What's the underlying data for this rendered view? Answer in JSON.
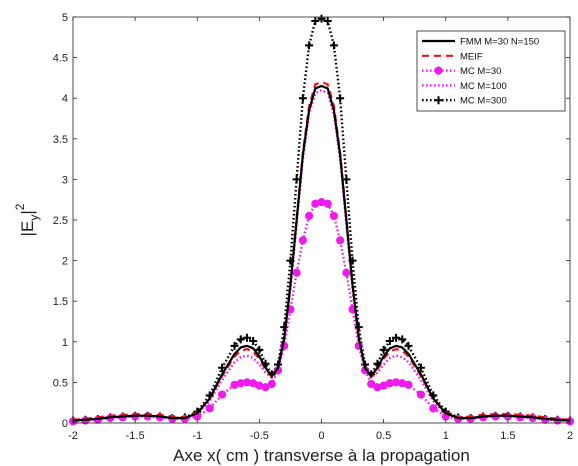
{
  "chart_data": {
    "type": "line",
    "title": "",
    "xlabel": "Axe x( cm ) transverse à la propagation",
    "ylabel_base": "|E",
    "ylabel_sub": "y",
    "ylabel_sup": "2",
    "xlim": [
      -2,
      2
    ],
    "ylim": [
      0,
      5
    ],
    "xticks": [
      -2,
      -1.5,
      -1,
      -0.5,
      0,
      0.5,
      1,
      1.5,
      2
    ],
    "xtick_labels": [
      "-2",
      "-1.5",
      "-1",
      "-0.5",
      "0",
      "0.5",
      "1",
      "1.5",
      "2"
    ],
    "yticks": [
      0,
      0.5,
      1,
      1.5,
      2,
      2.5,
      3,
      3.5,
      4,
      4.5,
      5
    ],
    "ytick_labels": [
      "0",
      "0.5",
      "1",
      "1.5",
      "2",
      "2.5",
      "3",
      "3.5",
      "4",
      "4.5",
      "5"
    ],
    "grid": false,
    "legend_position": "top-right",
    "x": [
      -2,
      -1.9,
      -1.8,
      -1.7,
      -1.6,
      -1.5,
      -1.4,
      -1.3,
      -1.2,
      -1.1,
      -1.0,
      -0.9,
      -0.8,
      -0.7,
      -0.65,
      -0.6,
      -0.55,
      -0.5,
      -0.45,
      -0.4,
      -0.35,
      -0.3,
      -0.25,
      -0.2,
      -0.15,
      -0.1,
      -0.05,
      0,
      0.05,
      0.1,
      0.15,
      0.2,
      0.25,
      0.3,
      0.35,
      0.4,
      0.45,
      0.5,
      0.55,
      0.6,
      0.65,
      0.7,
      0.8,
      0.9,
      1.0,
      1.1,
      1.2,
      1.3,
      1.4,
      1.5,
      1.6,
      1.7,
      1.8,
      1.9,
      2
    ],
    "series": [
      {
        "name": "FMM M=30 N=150",
        "color": "#000000",
        "style": "solid",
        "marker": "none",
        "values": [
          0.03,
          0.04,
          0.05,
          0.07,
          0.08,
          0.09,
          0.09,
          0.08,
          0.06,
          0.06,
          0.12,
          0.3,
          0.6,
          0.85,
          0.93,
          0.95,
          0.92,
          0.82,
          0.68,
          0.58,
          0.68,
          1.05,
          1.7,
          2.5,
          3.3,
          3.85,
          4.12,
          4.15,
          4.12,
          3.85,
          3.3,
          2.5,
          1.7,
          1.05,
          0.68,
          0.58,
          0.68,
          0.82,
          0.92,
          0.95,
          0.93,
          0.85,
          0.6,
          0.3,
          0.12,
          0.06,
          0.06,
          0.08,
          0.09,
          0.09,
          0.08,
          0.07,
          0.05,
          0.04,
          0.03
        ]
      },
      {
        "name": "MEIF",
        "color": "#e8141b",
        "style": "dashed",
        "marker": "none",
        "values": [
          0.04,
          0.05,
          0.07,
          0.09,
          0.1,
          0.11,
          0.11,
          0.1,
          0.08,
          0.07,
          0.13,
          0.3,
          0.58,
          0.82,
          0.89,
          0.91,
          0.88,
          0.79,
          0.66,
          0.57,
          0.67,
          1.04,
          1.7,
          2.52,
          3.33,
          3.9,
          4.17,
          4.2,
          4.17,
          3.9,
          3.33,
          2.52,
          1.7,
          1.04,
          0.67,
          0.57,
          0.66,
          0.79,
          0.88,
          0.91,
          0.89,
          0.82,
          0.58,
          0.3,
          0.13,
          0.07,
          0.08,
          0.1,
          0.11,
          0.11,
          0.1,
          0.09,
          0.07,
          0.05,
          0.04
        ]
      },
      {
        "name": "MC M=30",
        "color": "#ee1bee",
        "style": "dotted",
        "marker": "circle",
        "values": [
          0.02,
          0.03,
          0.04,
          0.06,
          0.07,
          0.08,
          0.08,
          0.07,
          0.05,
          0.05,
          0.08,
          0.18,
          0.35,
          0.47,
          0.49,
          0.5,
          0.49,
          0.46,
          0.44,
          0.48,
          0.65,
          0.95,
          1.4,
          1.85,
          2.25,
          2.55,
          2.7,
          2.72,
          2.7,
          2.55,
          2.25,
          1.85,
          1.4,
          0.95,
          0.65,
          0.48,
          0.44,
          0.46,
          0.49,
          0.5,
          0.49,
          0.47,
          0.35,
          0.18,
          0.08,
          0.05,
          0.05,
          0.07,
          0.08,
          0.08,
          0.07,
          0.06,
          0.04,
          0.03,
          0.02
        ]
      },
      {
        "name": "MC M=100",
        "color": "#ee1bee",
        "style": "dotted",
        "marker": "none",
        "values": [
          0.03,
          0.04,
          0.05,
          0.07,
          0.08,
          0.09,
          0.09,
          0.08,
          0.06,
          0.06,
          0.11,
          0.27,
          0.53,
          0.75,
          0.81,
          0.83,
          0.8,
          0.72,
          0.62,
          0.56,
          0.67,
          1.02,
          1.65,
          2.45,
          3.25,
          3.8,
          4.06,
          4.1,
          4.06,
          3.8,
          3.25,
          2.45,
          1.65,
          1.02,
          0.67,
          0.56,
          0.62,
          0.72,
          0.8,
          0.83,
          0.81,
          0.75,
          0.53,
          0.27,
          0.11,
          0.06,
          0.06,
          0.08,
          0.09,
          0.09,
          0.08,
          0.07,
          0.05,
          0.04,
          0.03
        ]
      },
      {
        "name": "MC M=300",
        "color": "#000000",
        "style": "dotted",
        "marker": "plus",
        "values": [
          0.03,
          0.04,
          0.05,
          0.07,
          0.08,
          0.09,
          0.09,
          0.08,
          0.06,
          0.07,
          0.14,
          0.34,
          0.68,
          0.95,
          1.03,
          1.05,
          1.01,
          0.9,
          0.73,
          0.6,
          0.72,
          1.18,
          2.0,
          3.0,
          4.0,
          4.65,
          4.95,
          4.98,
          4.95,
          4.65,
          4.0,
          3.0,
          2.0,
          1.18,
          0.72,
          0.6,
          0.73,
          0.9,
          1.01,
          1.05,
          1.03,
          0.95,
          0.68,
          0.34,
          0.14,
          0.07,
          0.06,
          0.08,
          0.09,
          0.09,
          0.08,
          0.07,
          0.05,
          0.04,
          0.03
        ]
      }
    ]
  }
}
